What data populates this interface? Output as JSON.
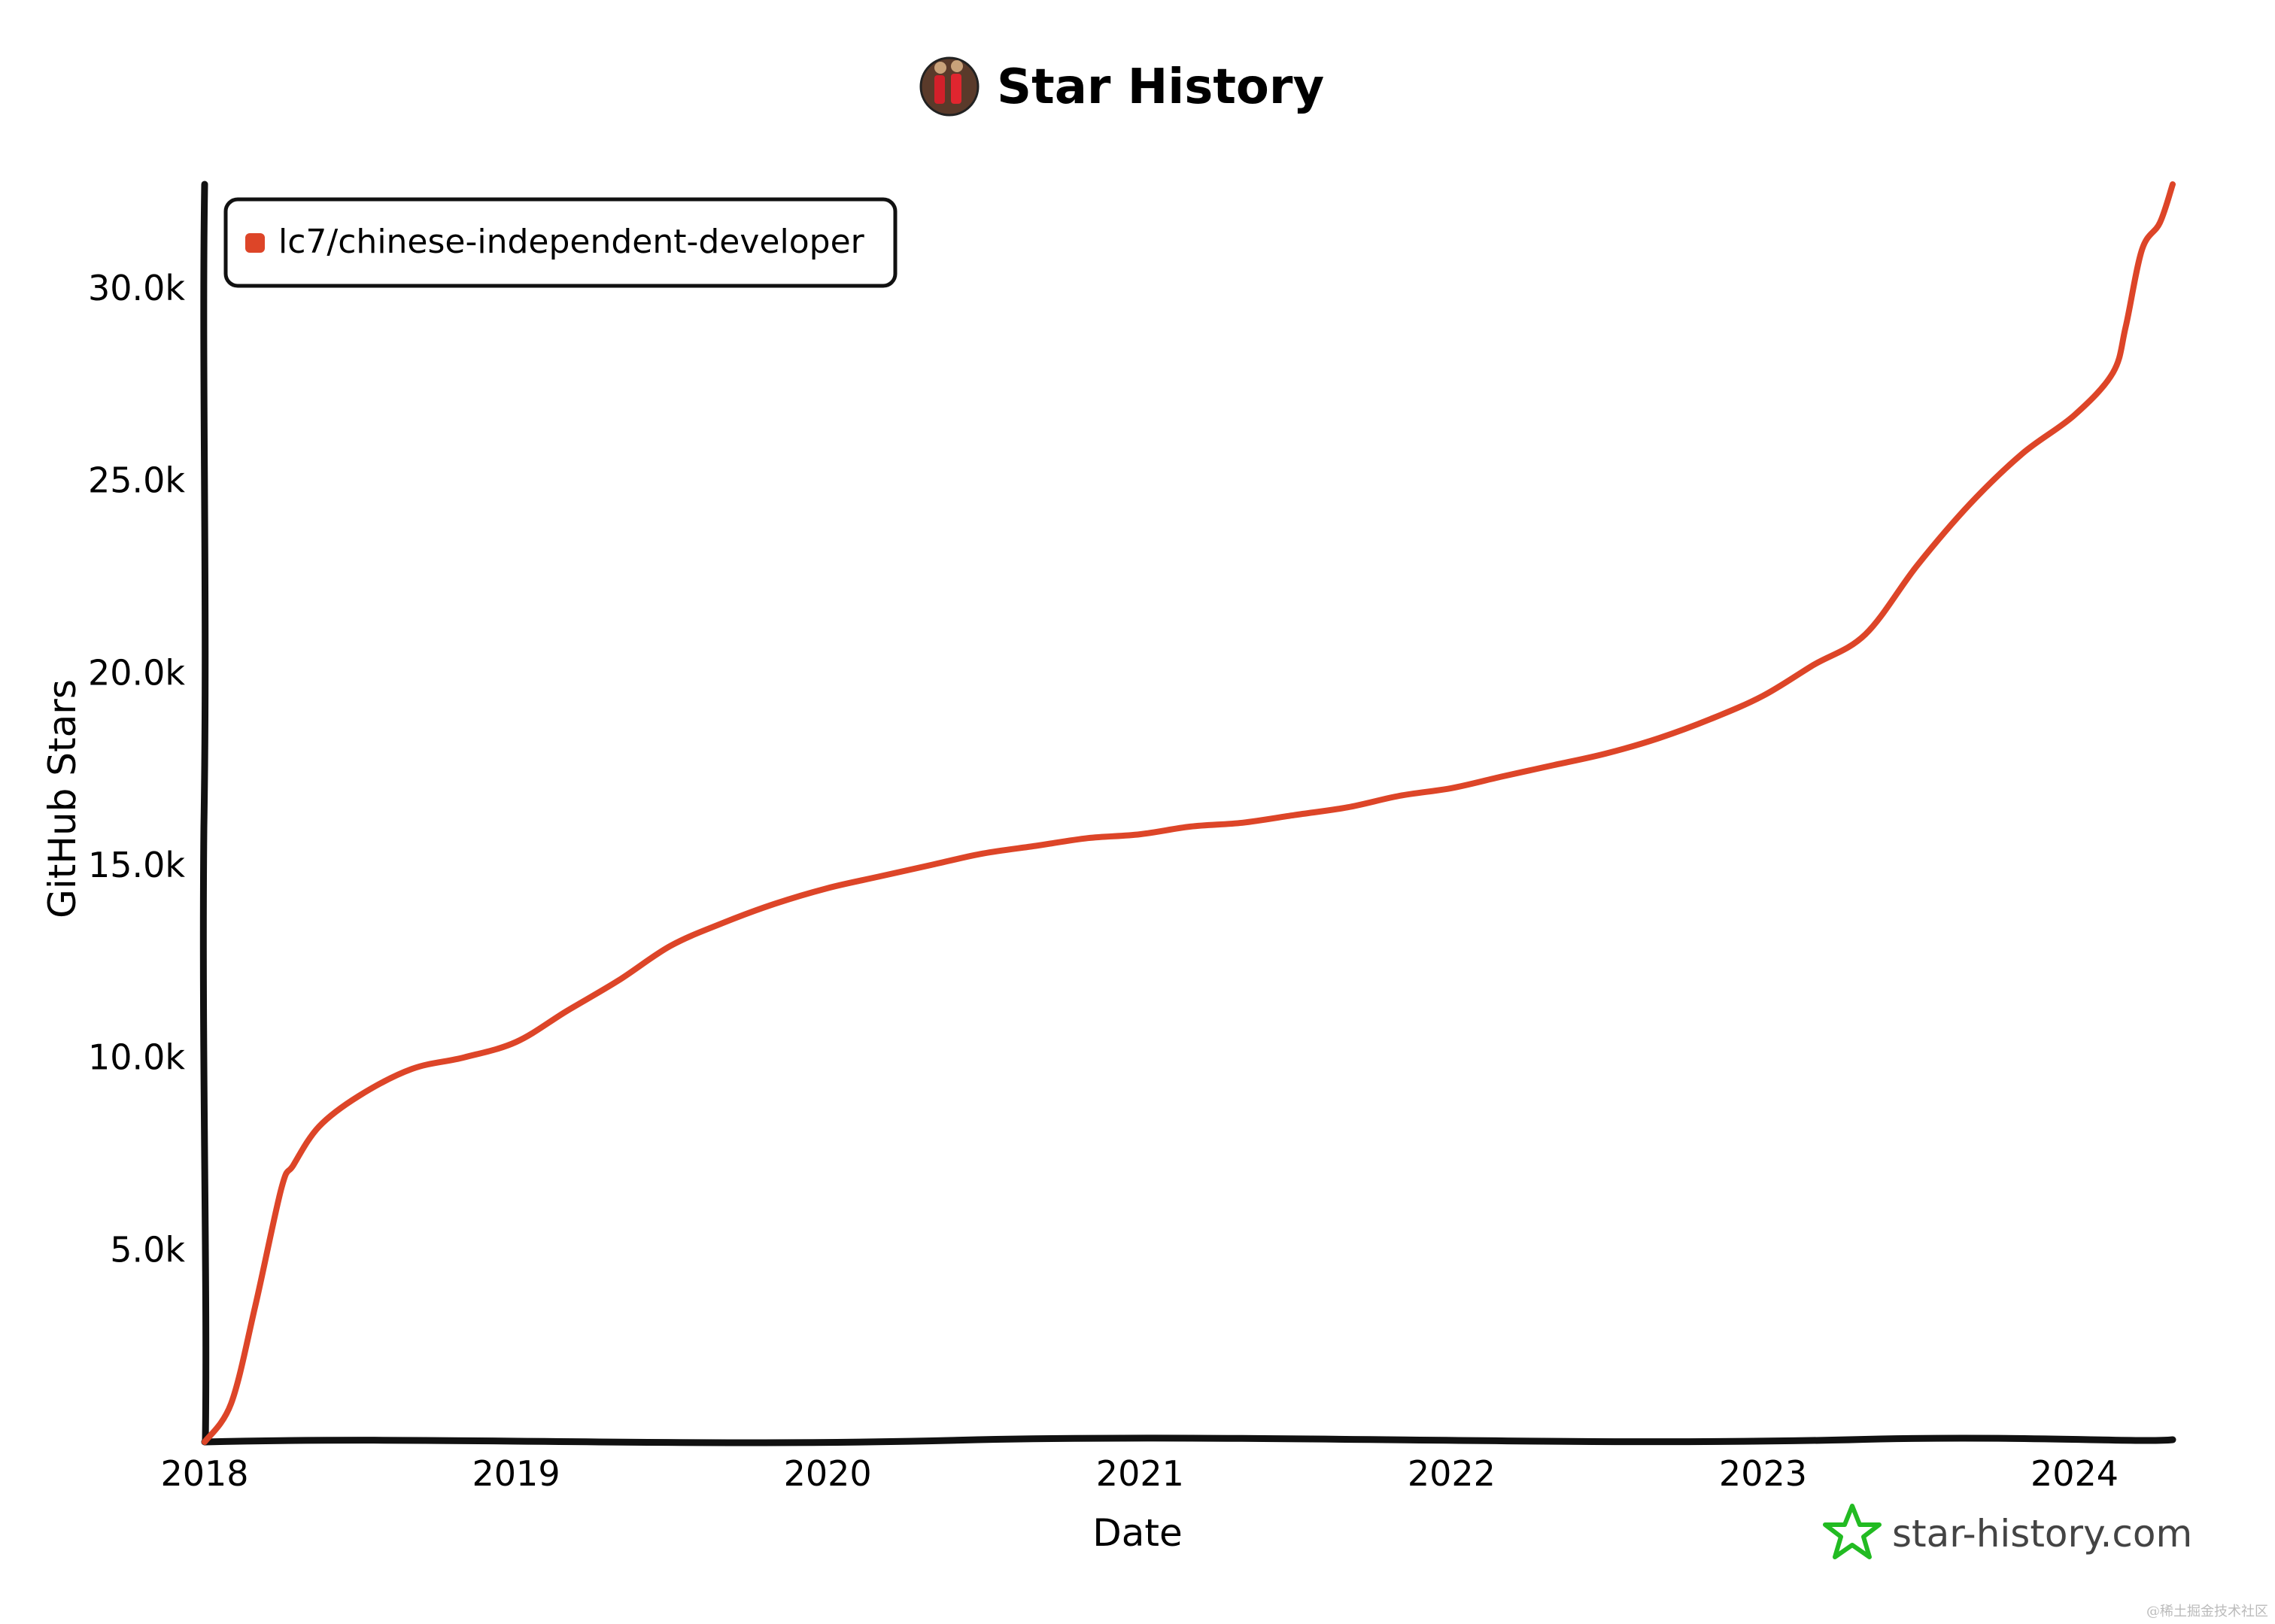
{
  "chart_data": {
    "type": "line",
    "title": "Star History",
    "xlabel": "Date",
    "ylabel": "GitHub Stars",
    "x_tick_labels": [
      "2018",
      "2019",
      "2020",
      "2021",
      "2022",
      "2023",
      "2024"
    ],
    "y_tick_labels": [
      "5.0k",
      "10.0k",
      "15.0k",
      "20.0k",
      "25.0k",
      "30.0k"
    ],
    "xlim": [
      "2018-01-01",
      "2024-04-25"
    ],
    "ylim": [
      0,
      32700
    ],
    "legend_position": "top-left",
    "series": [
      {
        "name": "lc7/chinese-independent-developer",
        "color": "#dd4528",
        "x": [
          "2018-01-01",
          "2018-02-01",
          "2018-03-01",
          "2018-04-01",
          "2018-04-15",
          "2018-05-15",
          "2018-07-01",
          "2018-09-01",
          "2018-11-01",
          "2019-01-01",
          "2019-03-01",
          "2019-05-01",
          "2019-07-01",
          "2019-09-01",
          "2019-11-01",
          "2020-01-01",
          "2020-03-01",
          "2020-05-01",
          "2020-07-01",
          "2020-09-01",
          "2020-11-01",
          "2021-01-01",
          "2021-03-01",
          "2021-05-01",
          "2021-07-01",
          "2021-09-01",
          "2021-11-01",
          "2022-01-01",
          "2022-03-01",
          "2022-05-01",
          "2022-07-01",
          "2022-09-01",
          "2022-11-01",
          "2023-01-01",
          "2023-03-01",
          "2023-05-01",
          "2023-07-01",
          "2023-09-01",
          "2023-11-01",
          "2024-01-01",
          "2024-02-15",
          "2024-03-01",
          "2024-03-20",
          "2024-04-10",
          "2024-04-25"
        ],
        "y": [
          0,
          1000,
          3500,
          6600,
          7200,
          8200,
          9000,
          9700,
          10000,
          10400,
          11200,
          12000,
          12900,
          13500,
          14000,
          14400,
          14700,
          15000,
          15300,
          15500,
          15700,
          15800,
          16000,
          16100,
          16300,
          16500,
          16800,
          17000,
          17300,
          17600,
          17900,
          18300,
          18800,
          19400,
          20200,
          21000,
          22800,
          24400,
          25700,
          26700,
          27800,
          29000,
          31000,
          31700,
          32700
        ]
      }
    ]
  },
  "watermark": {
    "brand": "star-history.com",
    "corner_text": "@稀土掘金技术社区"
  },
  "colors": {
    "line": "#dd4528",
    "axis": "#111111",
    "brand_star": "#22bb22"
  },
  "icons": {
    "title_avatar": "avatar-icon",
    "brand_logo": "star-icon"
  }
}
